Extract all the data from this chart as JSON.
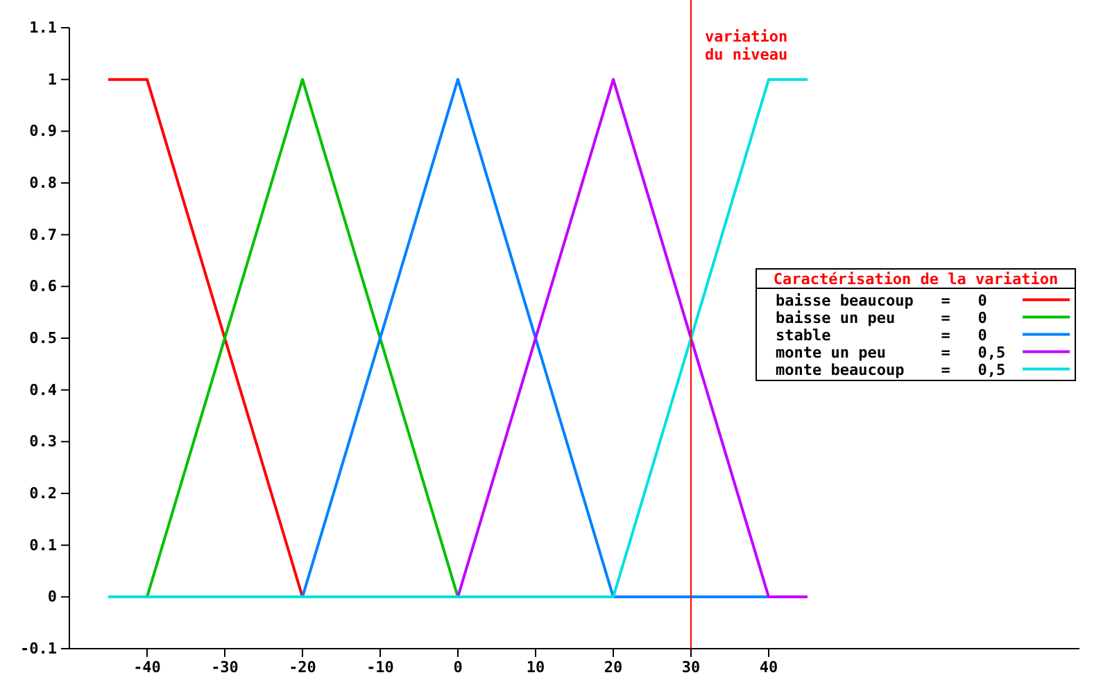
{
  "chart_data": {
    "type": "line",
    "legend_title": "Caractérisation de la variation",
    "xlim": [
      -50,
      80
    ],
    "xticks": [
      -40,
      -30,
      -20,
      -10,
      0,
      10,
      20,
      30,
      40
    ],
    "ylim": [
      -0.1,
      1.1
    ],
    "yticks": [
      -0.1,
      0,
      0.1,
      0.2,
      0.3,
      0.4,
      0.5,
      0.6,
      0.7,
      0.8,
      0.9,
      1,
      1.1
    ],
    "series": [
      {
        "name": "baisse beaucoup   =   0",
        "color": "#ff0000",
        "x": [
          -45,
          -40,
          -20
        ],
        "values": [
          1,
          1,
          0
        ]
      },
      {
        "name": "baisse un peu     =   0",
        "color": "#00c000",
        "x": [
          -40,
          -20,
          0
        ],
        "values": [
          0,
          1,
          0
        ]
      },
      {
        "name": "stable            =   0",
        "color": "#0080ff",
        "x": [
          -20,
          0,
          20,
          40
        ],
        "values": [
          0,
          1,
          0,
          0
        ]
      },
      {
        "name": "monte un peu      =   0,5",
        "color": "#c000ff",
        "x": [
          0,
          20,
          40,
          45
        ],
        "values": [
          0,
          1,
          0,
          0
        ]
      },
      {
        "name": "monte beaucoup    =   0,5",
        "color": "#00e0e0",
        "x": [
          -45,
          20,
          40,
          45
        ],
        "values": [
          0,
          0,
          1,
          1
        ]
      }
    ],
    "ref_lines": [
      {
        "axis": "x",
        "value": 30,
        "label": "variation\ndu niveau",
        "color": "#ff0000"
      }
    ],
    "legend": "right",
    "grid": false
  }
}
